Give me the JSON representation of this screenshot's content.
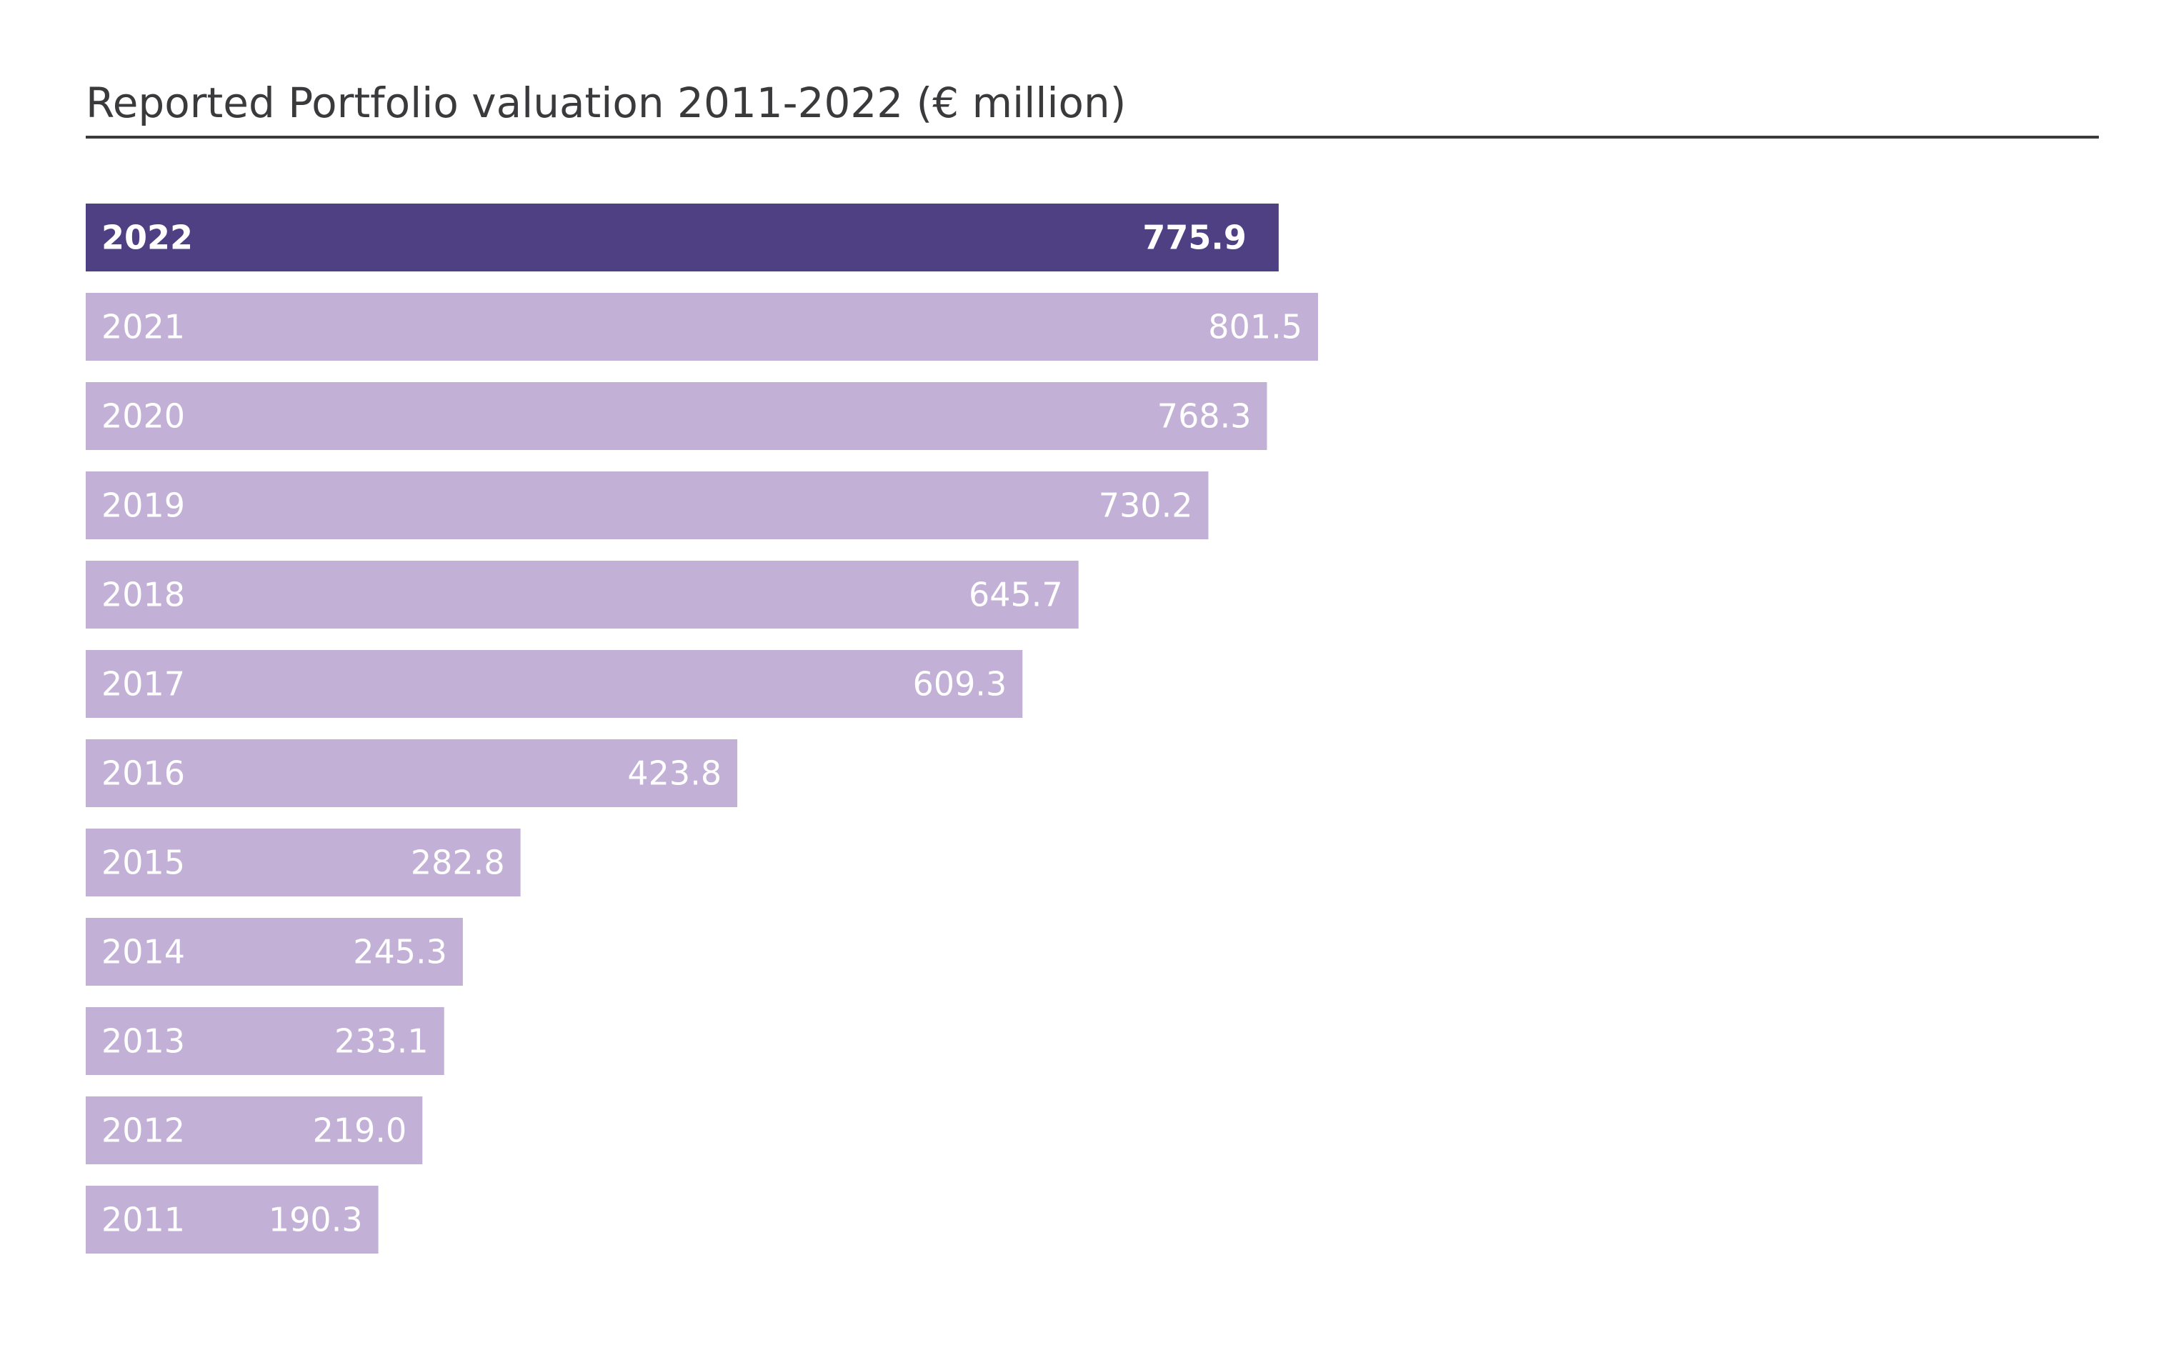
{
  "colors": {
    "highlight_bar": "#4f4084",
    "regular_bar": "#c2b0d6",
    "bar_text": "#ffffff",
    "title_text": "#3a3a3c",
    "title_rule": "#3a3a3c"
  },
  "chart_data": {
    "type": "bar",
    "orientation": "horizontal",
    "title": "Reported Portfolio valuation 2011-2022 (€ million)",
    "xlabel": "",
    "ylabel": "",
    "grid": false,
    "legend": "none",
    "xlim": [
      0,
      801.5
    ],
    "highlight": "2022",
    "categories": [
      "2022",
      "2021",
      "2020",
      "2019",
      "2018",
      "2017",
      "2016",
      "2015",
      "2014",
      "2013",
      "2012",
      "2011"
    ],
    "values": [
      775.9,
      801.5,
      768.3,
      730.2,
      645.7,
      609.3,
      423.8,
      282.8,
      245.3,
      233.1,
      219.0,
      190.3
    ],
    "value_labels": [
      "775.9",
      "801.5",
      "768.3",
      "730.2",
      "645.7",
      "609.3",
      "423.8",
      "282.8",
      "245.3",
      "233.1",
      "219.0",
      "190.3"
    ]
  }
}
